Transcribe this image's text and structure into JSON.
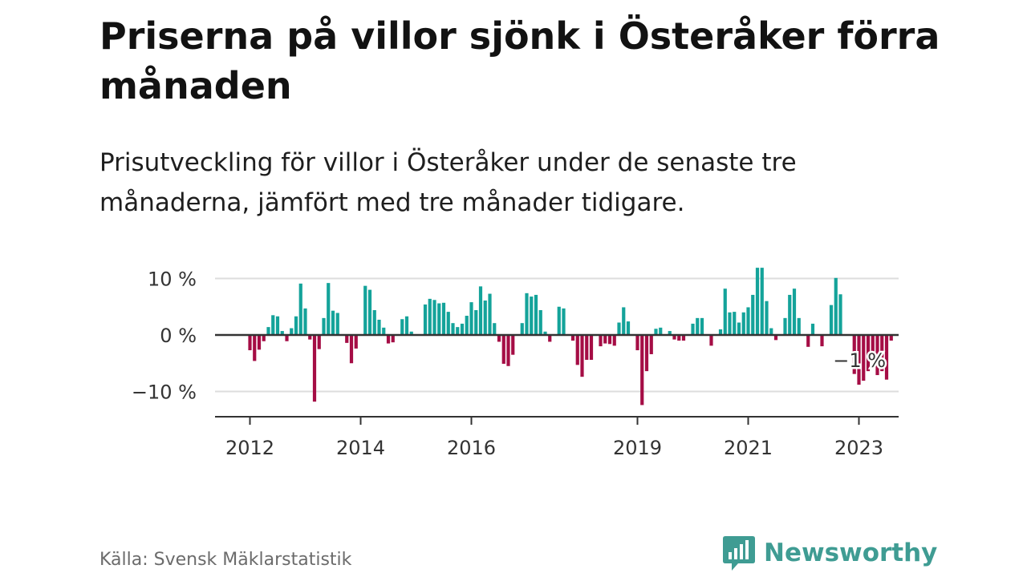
{
  "title": "Priserna på villor sjönk i Österåker förra månaden",
  "subtitle": "Prisutveckling för villor i Österåker under de senaste tre månaderna, jämfört med tre månader tidigare.",
  "source": "Källa: Svensk Mäklarstatistik",
  "brand": {
    "name": "Newsworthy",
    "icon": "newsworthy-logo-icon",
    "color": "#3f9c93"
  },
  "colors": {
    "positive": "#14a39a",
    "negative": "#a50d45",
    "zero_line": "#333333",
    "grid": "#dddddd"
  },
  "chart_data": {
    "type": "bar",
    "title": "",
    "xlabel": "",
    "ylabel": "",
    "ylim": [
      -14,
      13
    ],
    "yticks": [
      {
        "value": 10,
        "label": "10 %"
      },
      {
        "value": 0,
        "label": "0 %"
      },
      {
        "value": -10,
        "label": "−10 %"
      }
    ],
    "xticks": [
      {
        "label": "2012",
        "index": 0
      },
      {
        "label": "2014",
        "index": 24
      },
      {
        "label": "2016",
        "index": 48
      },
      {
        "label": "2019",
        "index": 84
      },
      {
        "label": "2021",
        "index": 108
      },
      {
        "label": "2023",
        "index": 132
      }
    ],
    "start": "2012-01",
    "annotation": {
      "label": "−1 %",
      "index": 133
    },
    "values": [
      -2.7,
      -4.6,
      -2.6,
      -1.1,
      1.4,
      3.5,
      3.3,
      0.7,
      -1.1,
      1.2,
      3.3,
      9.1,
      4.7,
      -0.8,
      -11.8,
      -2.5,
      3.0,
      9.2,
      4.3,
      3.9,
      0.0,
      -1.4,
      -5.0,
      -2.4,
      0.0,
      8.7,
      8.0,
      4.4,
      2.7,
      1.3,
      -1.5,
      -1.3,
      0.0,
      2.8,
      3.3,
      0.6,
      0.0,
      0.0,
      5.4,
      6.4,
      6.2,
      5.6,
      5.7,
      4.1,
      2.1,
      1.4,
      2.0,
      3.4,
      5.8,
      4.4,
      8.6,
      6.1,
      7.3,
      2.1,
      -1.2,
      -5.1,
      -5.5,
      -3.5,
      0.0,
      2.1,
      7.4,
      6.8,
      7.1,
      4.4,
      0.6,
      -1.2,
      0.0,
      5.0,
      4.7,
      0.0,
      -1.0,
      -5.3,
      -7.4,
      -4.4,
      -4.4,
      0.0,
      -2.0,
      -1.5,
      -1.6,
      -1.9,
      2.2,
      4.9,
      2.4,
      0.0,
      -2.7,
      -12.4,
      -6.4,
      -3.4,
      1.1,
      1.3,
      0.0,
      0.7,
      -0.8,
      -1.0,
      -1.0,
      0.0,
      2.0,
      3.0,
      3.0,
      0.0,
      -1.9,
      0.0,
      1.0,
      8.2,
      4.0,
      4.1,
      2.2,
      4.0,
      4.9,
      7.1,
      11.9,
      11.9,
      6.0,
      1.2,
      -0.9,
      0.0,
      3.0,
      7.1,
      8.2,
      3.0,
      0.0,
      -2.1,
      2.0,
      0.0,
      -2.0,
      0.0,
      5.3,
      10.1,
      7.2,
      0.0,
      0.0,
      -6.9,
      -8.8,
      -8.1,
      -6.4,
      -3.5,
      -7.1,
      -6.4,
      -7.9,
      -1.0
    ]
  }
}
